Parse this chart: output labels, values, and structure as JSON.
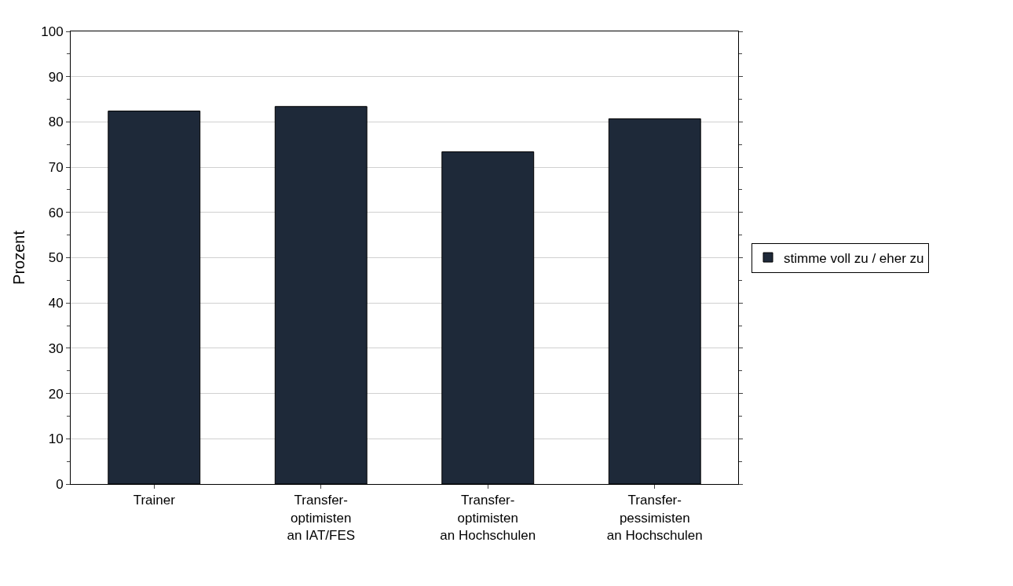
{
  "chart_data": {
    "type": "bar",
    "ylabel": "Prozent",
    "categories": [
      "Trainer",
      "Transfer-\noptimisten\nan IAT/FES",
      "Transfer-\noptimisten\nan Hochschulen",
      "Transfer-\npessimisten\nan Hochschulen"
    ],
    "series": [
      {
        "name": "stimme voll zu / eher zu",
        "color": "#1e2939",
        "values": [
          82.4,
          83.4,
          73.4,
          80.7
        ]
      }
    ],
    "ylim": [
      0,
      100
    ],
    "yticks": [
      0,
      10,
      20,
      30,
      40,
      50,
      60,
      70,
      80,
      90,
      100
    ],
    "grid": "y",
    "legend": "right"
  }
}
